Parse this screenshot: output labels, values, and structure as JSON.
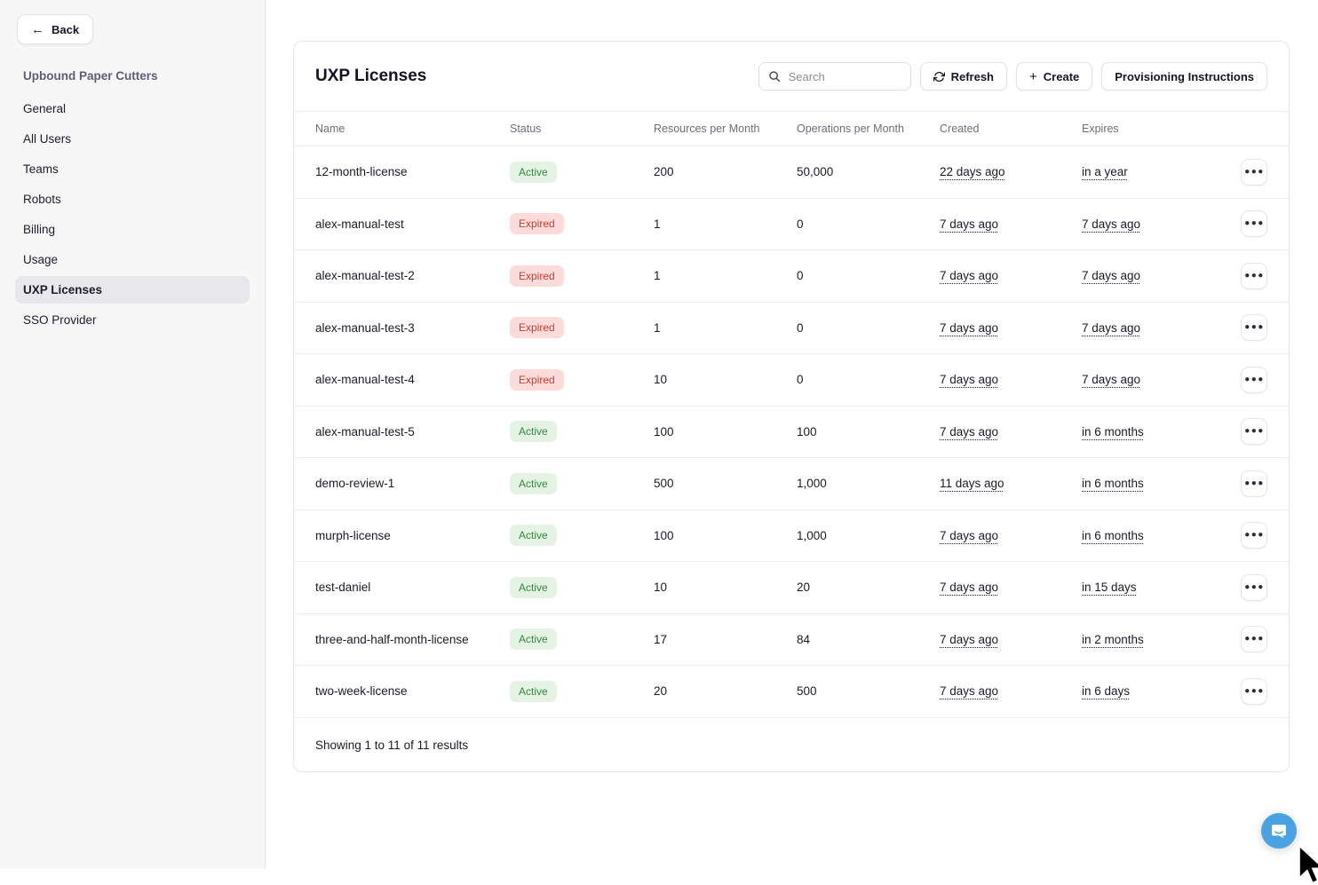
{
  "sidebar": {
    "back_label": "Back",
    "org_name": "Upbound Paper Cutters",
    "items": [
      {
        "label": "General",
        "active": false
      },
      {
        "label": "All Users",
        "active": false
      },
      {
        "label": "Teams",
        "active": false
      },
      {
        "label": "Robots",
        "active": false
      },
      {
        "label": "Billing",
        "active": false
      },
      {
        "label": "Usage",
        "active": false
      },
      {
        "label": "UXP Licenses",
        "active": true
      },
      {
        "label": "SSO Provider",
        "active": false
      }
    ]
  },
  "header": {
    "title": "UXP Licenses",
    "search_placeholder": "Search",
    "refresh_label": "Refresh",
    "create_label": "Create",
    "provisioning_label": "Provisioning Instructions"
  },
  "table": {
    "columns": [
      "Name",
      "Status",
      "Resources per Month",
      "Operations per Month",
      "Created",
      "Expires"
    ],
    "rows": [
      {
        "name": "12-month-license",
        "status": "Active",
        "resources": "200",
        "operations": "50,000",
        "created": "22 days ago",
        "expires": "in a year"
      },
      {
        "name": "alex-manual-test",
        "status": "Expired",
        "resources": "1",
        "operations": "0",
        "created": "7 days ago",
        "expires": "7 days ago"
      },
      {
        "name": "alex-manual-test-2",
        "status": "Expired",
        "resources": "1",
        "operations": "0",
        "created": "7 days ago",
        "expires": "7 days ago"
      },
      {
        "name": "alex-manual-test-3",
        "status": "Expired",
        "resources": "1",
        "operations": "0",
        "created": "7 days ago",
        "expires": "7 days ago"
      },
      {
        "name": "alex-manual-test-4",
        "status": "Expired",
        "resources": "10",
        "operations": "0",
        "created": "7 days ago",
        "expires": "7 days ago"
      },
      {
        "name": "alex-manual-test-5",
        "status": "Active",
        "resources": "100",
        "operations": "100",
        "created": "7 days ago",
        "expires": "in 6 months"
      },
      {
        "name": "demo-review-1",
        "status": "Active",
        "resources": "500",
        "operations": "1,000",
        "created": "11 days ago",
        "expires": "in 6 months"
      },
      {
        "name": "murph-license",
        "status": "Active",
        "resources": "100",
        "operations": "1,000",
        "created": "7 days ago",
        "expires": "in 6 months"
      },
      {
        "name": "test-daniel",
        "status": "Active",
        "resources": "10",
        "operations": "20",
        "created": "7 days ago",
        "expires": "in 15 days"
      },
      {
        "name": "three-and-half-month-license",
        "status": "Active",
        "resources": "17",
        "operations": "84",
        "created": "7 days ago",
        "expires": "in 2 months"
      },
      {
        "name": "two-week-license",
        "status": "Active",
        "resources": "20",
        "operations": "500",
        "created": "7 days ago",
        "expires": "in 6 days"
      }
    ],
    "footer": "Showing 1 to 11 of 11 results"
  },
  "icons": {
    "back": "arrow-left",
    "search": "magnifier",
    "refresh": "circular-arrows",
    "create": "plus",
    "row_actions": "ellipsis",
    "chat": "speech-bubble",
    "cursor": "mouse-pointer"
  },
  "colors": {
    "badge_active_bg": "#e4f3e4",
    "badge_active_text": "#2f8a3c",
    "badge_expired_bg": "#fbdcda",
    "badge_expired_text": "#cf3a30",
    "chat_bubble": "#4aa2e2",
    "sidebar_bg": "#f7f7f8",
    "selected_item_bg": "#e8e8ec"
  }
}
